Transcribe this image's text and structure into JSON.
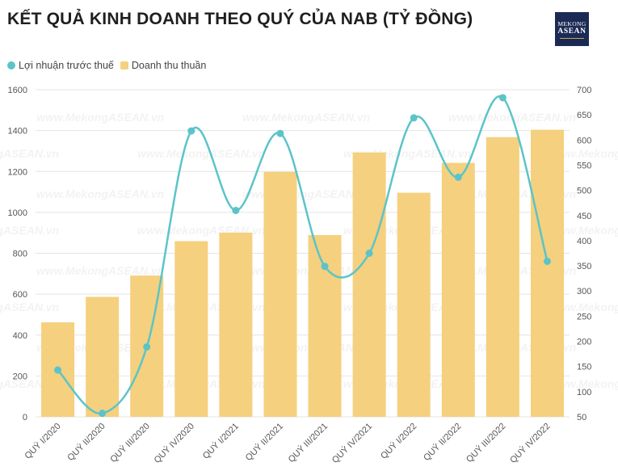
{
  "header": {
    "title": "KẾT QUẢ KINH DOANH THEO QUÝ CỦA NAB (TỶ ĐỒNG)",
    "logo_top": "MEKONG",
    "logo_bottom": "ASEAN"
  },
  "watermark": "www.MekongASEAN.vn",
  "chart_data": {
    "type": "bar",
    "title": "KẾT QUẢ KINH DOANH THEO QUÝ CỦA NAB (TỶ ĐỒNG)",
    "categories": [
      "QUÝ I/2020",
      "QUÝ II/2020",
      "QUÝ III/2020",
      "QUÝ IV/2020",
      "QUÝ I/2021",
      "QUÝ II/2021",
      "QUÝ III/2021",
      "QUÝ IV/2021",
      "QUÝ I/2022",
      "QUÝ II/2022",
      "QUÝ III/2022",
      "QUÝ IV/2022"
    ],
    "series": [
      {
        "name": "Lợi nhuận trước thuế",
        "type": "line",
        "axis": "right",
        "color": "#5bc4c9",
        "values": [
          143,
          57,
          189,
          618,
          460,
          613,
          349,
          375,
          644,
          526,
          684,
          359
        ]
      },
      {
        "name": "Doanh thu thuần",
        "type": "bar",
        "axis": "left",
        "color": "#f5d07e",
        "values": [
          462,
          587,
          691,
          859,
          901,
          1198,
          889,
          1293,
          1096,
          1242,
          1368,
          1404
        ]
      }
    ],
    "y_left": {
      "min": 0,
      "max": 1600,
      "ticks": [
        0,
        200,
        400,
        600,
        800,
        1000,
        1200,
        1400,
        1600
      ]
    },
    "y_right": {
      "min": 50,
      "max": 700,
      "ticks": [
        50,
        100,
        150,
        200,
        250,
        300,
        350,
        400,
        450,
        500,
        550,
        600,
        650,
        700
      ]
    },
    "legend_position": "top-left",
    "grid": true
  }
}
